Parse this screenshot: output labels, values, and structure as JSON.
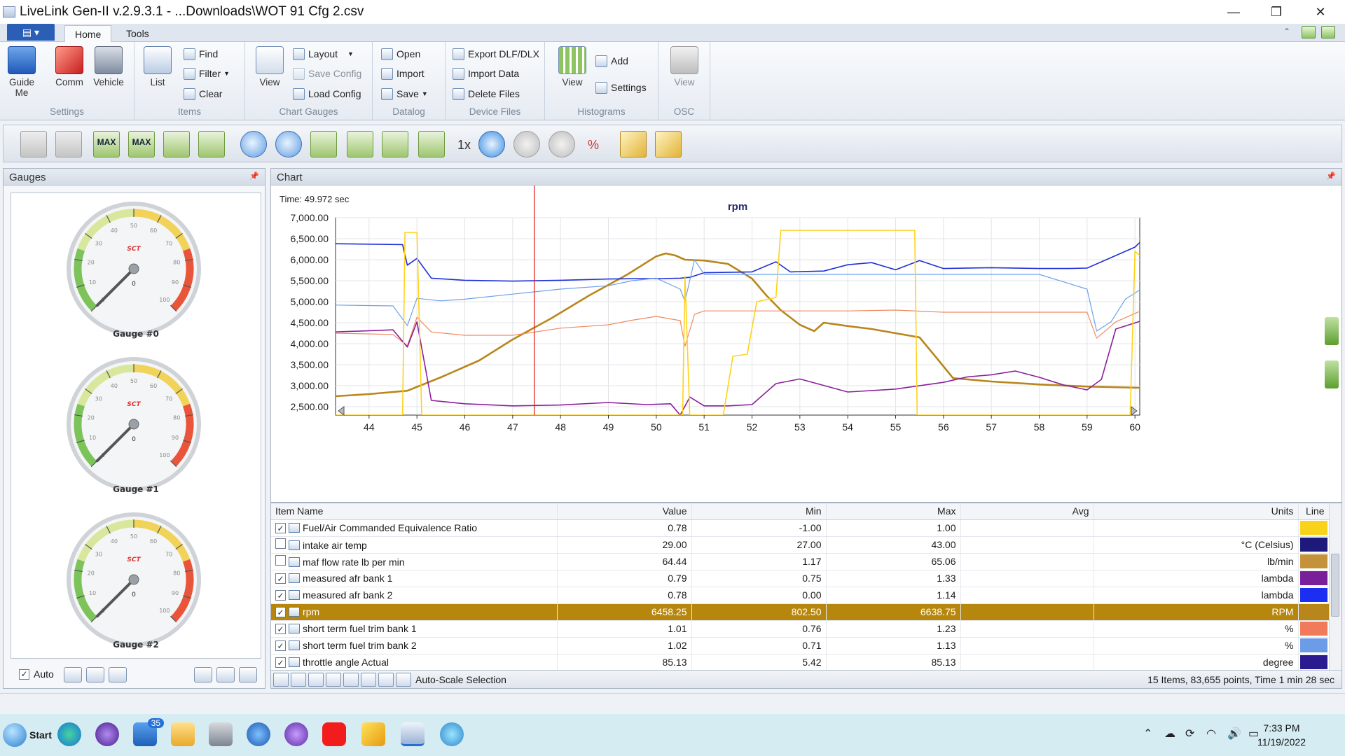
{
  "window": {
    "title": "LiveLink Gen-II  v.2.9.3.1 - ...Downloads\\WOT 91 Cfg 2.csv",
    "minimize": "—",
    "restore": "❐",
    "close": "✕"
  },
  "ribbon_tabs": [
    {
      "label": "Home",
      "active": true
    },
    {
      "label": "Tools",
      "active": false
    }
  ],
  "ribbon": {
    "settings_group": {
      "label": "Settings",
      "guide": "Guide Me",
      "comm": "Comm",
      "vehicle": "Vehicle"
    },
    "items_group": {
      "label": "Items",
      "list": "List",
      "find": "Find",
      "filter": "Filter",
      "clear": "Clear"
    },
    "chart_gauges_group": {
      "label": "Chart  Gauges",
      "view": "View",
      "layout": "Layout",
      "save_config": "Save Config",
      "load_config": "Load Config"
    },
    "datalog_group": {
      "label": "Datalog",
      "open": "Open",
      "import": "Import",
      "save": "Save"
    },
    "device_files_group": {
      "label": "Device Files",
      "export": "Export DLF/DLX",
      "import_data": "Import Data",
      "delete_files": "Delete Files"
    },
    "histograms_group": {
      "label": "Histograms",
      "view": "View",
      "add": "Add",
      "settings": "Settings"
    },
    "osc_group": {
      "label": "OSC",
      "view": "View"
    }
  },
  "toolbar": {
    "max1": "MAX",
    "max2": "MAX",
    "speed": "1x",
    "percent": "%"
  },
  "gauges_panel": {
    "title": "Gauges",
    "gauges": [
      {
        "label": "Gauge #0",
        "value": 0,
        "brand": "SCT"
      },
      {
        "label": "Gauge #1",
        "value": 0,
        "brand": "SCT"
      },
      {
        "label": "Gauge #2",
        "value": 0,
        "brand": "SCT"
      }
    ],
    "ticks": [
      "0",
      "10",
      "20",
      "30",
      "40",
      "50",
      "60",
      "70",
      "80",
      "90",
      "100"
    ],
    "auto_label": "Auto",
    "auto_checked": true
  },
  "chart_panel": {
    "title": "Chart",
    "time_readout": "Time: 49.972 sec",
    "chart_data": {
      "type": "line",
      "title": "rpm",
      "xlabel": "",
      "ylabel": "",
      "xlim": [
        43.3,
        60.1
      ],
      "ylim": [
        2300,
        7000
      ],
      "x_ticks": [
        44,
        45,
        46,
        47,
        48,
        49,
        50,
        51,
        52,
        53,
        54,
        55,
        56,
        57,
        58,
        59,
        60
      ],
      "y_ticks": [
        "7,000.00",
        "6,500.00",
        "6,000.00",
        "5,500.00",
        "5,000.00",
        "4,500.00",
        "4,000.00",
        "3,500.00",
        "3,000.00",
        "2,500.00"
      ],
      "y_tick_values": [
        7000,
        6500,
        6000,
        5500,
        5000,
        4500,
        4000,
        3500,
        3000,
        2500
      ],
      "grid": true,
      "cursor_x": 47.45,
      "series": [
        {
          "color": "#b8861b",
          "width": 2.6,
          "x": [
            43.3,
            44.0,
            44.8,
            45.5,
            46.3,
            47.0,
            47.8,
            48.6,
            49.4,
            50.0,
            50.2,
            50.4,
            50.6,
            51.0,
            51.5,
            52.0,
            52.3,
            52.6,
            53.0,
            53.3,
            53.5,
            54.0,
            54.5,
            55.0,
            55.5,
            55.9,
            56.2,
            57.0,
            58.0,
            59.0,
            60.1
          ],
          "y": [
            2750,
            2800,
            2880,
            3200,
            3600,
            4100,
            4600,
            5150,
            5650,
            6080,
            6150,
            6100,
            6000,
            5980,
            5900,
            5550,
            5150,
            4800,
            4450,
            4300,
            4500,
            4420,
            4350,
            4250,
            4150,
            3600,
            3180,
            3100,
            3030,
            2980,
            2950
          ]
        },
        {
          "color": "#1f2fd6",
          "width": 1.6,
          "x": [
            43.3,
            44.7,
            44.8,
            45.0,
            45.3,
            46.0,
            47.0,
            48.0,
            49.0,
            49.6,
            50.1,
            50.5,
            50.7,
            51.0,
            52.0,
            52.5,
            52.8,
            53.5,
            54.0,
            54.5,
            55.0,
            55.5,
            56.0,
            57.0,
            58.0,
            58.6,
            59.0,
            59.5,
            60.0,
            60.1
          ],
          "y": [
            6380,
            6360,
            5870,
            6030,
            5560,
            5510,
            5490,
            5510,
            5540,
            5550,
            5550,
            5560,
            5580,
            5690,
            5710,
            5950,
            5710,
            5730,
            5880,
            5930,
            5760,
            5980,
            5790,
            5810,
            5790,
            5790,
            5800,
            6050,
            6300,
            6410
          ]
        },
        {
          "color": "#6ea0e8",
          "width": 1.2,
          "x": [
            43.3,
            44.5,
            44.8,
            45.0,
            45.5,
            46.0,
            47.0,
            48.0,
            49.0,
            49.5,
            50.0,
            50.5,
            50.6,
            50.8,
            51.0,
            52.0,
            53.0,
            54.0,
            55.0,
            56.0,
            57.0,
            58.0,
            59.0,
            59.2,
            59.5,
            59.8,
            60.1
          ],
          "y": [
            4920,
            4900,
            4430,
            5080,
            5020,
            5060,
            5180,
            5300,
            5380,
            5500,
            5560,
            5300,
            5010,
            6000,
            5650,
            5650,
            5650,
            5650,
            5650,
            5650,
            5650,
            5650,
            5300,
            4300,
            4520,
            5060,
            5280
          ]
        },
        {
          "color": "#f08a60",
          "width": 1.2,
          "x": [
            43.3,
            44.5,
            44.8,
            45.0,
            45.3,
            46.0,
            47.0,
            48.0,
            49.0,
            49.5,
            50.0,
            50.5,
            50.6,
            50.8,
            51.0,
            52.0,
            53.0,
            54.0,
            55.0,
            56.0,
            57.0,
            58.0,
            59.0,
            59.2,
            59.6,
            60.1
          ],
          "y": [
            4250,
            4220,
            3950,
            4630,
            4280,
            4200,
            4200,
            4370,
            4450,
            4560,
            4650,
            4550,
            3940,
            4700,
            4780,
            4780,
            4780,
            4780,
            4800,
            4750,
            4750,
            4750,
            4750,
            4130,
            4520,
            4770
          ]
        },
        {
          "color": "#8b1f9c",
          "width": 1.6,
          "x": [
            43.3,
            44.5,
            44.8,
            45.0,
            45.3,
            46.0,
            47.0,
            48.0,
            49.0,
            49.8,
            50.3,
            50.5,
            50.7,
            51.0,
            51.5,
            52.0,
            52.5,
            53.0,
            54.0,
            55.0,
            56.0,
            56.5,
            57.0,
            57.5,
            58.0,
            58.5,
            59.0,
            59.3,
            59.6,
            60.1
          ],
          "y": [
            4280,
            4330,
            3920,
            4520,
            2650,
            2570,
            2520,
            2540,
            2600,
            2550,
            2570,
            2300,
            2730,
            2520,
            2520,
            2550,
            3050,
            3160,
            2850,
            2920,
            3080,
            3210,
            3260,
            3350,
            3200,
            3020,
            2900,
            3150,
            4350,
            4530
          ]
        },
        {
          "color": "#ffd21a",
          "width": 1.6,
          "x": [
            43.3,
            44.7,
            44.75,
            45.0,
            45.1,
            46.0,
            47.0,
            48.0,
            49.0,
            50.0,
            50.55,
            50.6,
            50.7,
            51.4,
            51.6,
            51.9,
            52.1,
            52.5,
            52.6,
            53.0,
            54.0,
            55.0,
            55.4,
            55.45,
            56.0,
            57.0,
            58.0,
            59.0,
            59.9,
            60.0,
            60.1
          ],
          "y": [
            2300,
            2300,
            6650,
            6650,
            2300,
            2300,
            2300,
            2300,
            2300,
            2300,
            2300,
            5600,
            2300,
            2300,
            3700,
            3750,
            5000,
            5100,
            6700,
            6700,
            6700,
            6700,
            6700,
            2300,
            2300,
            2300,
            2300,
            2300,
            2300,
            6200,
            6100
          ]
        }
      ]
    }
  },
  "grid": {
    "columns": [
      "Item Name",
      "Value",
      "Min",
      "Max",
      "Avg",
      "Units",
      "Line"
    ],
    "rows": [
      {
        "checked": true,
        "icon": "calc",
        "name": "Fuel/Air Commanded Equivalence Ratio",
        "value": "0.78",
        "min": "-1.00",
        "max": "1.00",
        "avg": "",
        "units": "",
        "color": "#f9d21c",
        "selected": false
      },
      {
        "checked": false,
        "icon": "pid",
        "name": "intake air temp",
        "value": "29.00",
        "min": "27.00",
        "max": "43.00",
        "avg": "",
        "units": "°C (Celsius)",
        "color": "#1d1a7c",
        "selected": false
      },
      {
        "checked": false,
        "icon": "pid",
        "name": "maf flow rate lb per min",
        "value": "64.44",
        "min": "1.17",
        "max": "65.06",
        "avg": "",
        "units": "lb/min",
        "color": "#c4923a",
        "selected": false
      },
      {
        "checked": true,
        "icon": "pid",
        "name": "measured afr bank 1",
        "value": "0.79",
        "min": "0.75",
        "max": "1.33",
        "avg": "",
        "units": "lambda",
        "color": "#7a1f9a",
        "selected": false
      },
      {
        "checked": true,
        "icon": "pid",
        "name": "measured afr bank 2",
        "value": "0.78",
        "min": "0.00",
        "max": "1.14",
        "avg": "",
        "units": "lambda",
        "color": "#1c2ef2",
        "selected": false
      },
      {
        "checked": true,
        "icon": "pid",
        "name": "rpm",
        "value": "6458.25",
        "min": "802.50",
        "max": "6638.75",
        "avg": "",
        "units": "RPM",
        "color": "#b8861b",
        "selected": true
      },
      {
        "checked": true,
        "icon": "pid",
        "name": "short term fuel trim bank 1",
        "value": "1.01",
        "min": "0.76",
        "max": "1.23",
        "avg": "",
        "units": "%",
        "color": "#f07a5a",
        "selected": false
      },
      {
        "checked": true,
        "icon": "pid",
        "name": "short term fuel trim bank 2",
        "value": "1.02",
        "min": "0.71",
        "max": "1.13",
        "avg": "",
        "units": "%",
        "color": "#6c9be8",
        "selected": false
      },
      {
        "checked": true,
        "icon": "pid",
        "name": "throttle angle Actual",
        "value": "85.13",
        "min": "5.42",
        "max": "85.13",
        "avg": "",
        "units": "degree",
        "color": "#2a1c90",
        "selected": false
      }
    ],
    "footer_action": "Auto-Scale Selection",
    "footer_status": "15 Items, 83,655 points, Time 1 min 28 sec"
  },
  "taskbar": {
    "start": "Start",
    "mail_badge": "35",
    "time": "7:33 PM",
    "date": "11/19/2022"
  }
}
